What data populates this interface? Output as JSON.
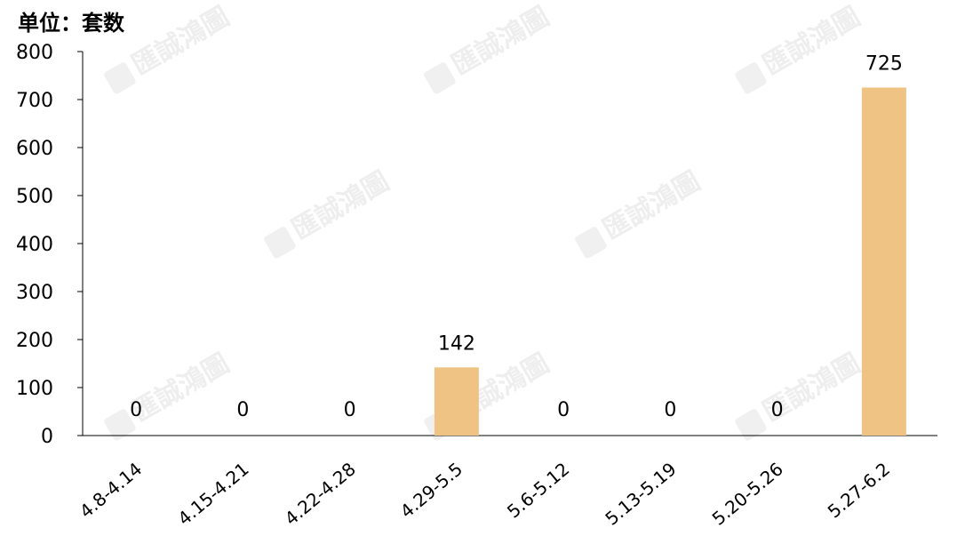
{
  "unit_label": "单位：套数",
  "watermark_text": "匯誠鴻圖",
  "colors": {
    "bar": "#EEC384",
    "axis": "#000000",
    "text": "#000000"
  },
  "chart_data": {
    "type": "bar",
    "categories": [
      "4.8-4.14",
      "4.15-4.21",
      "4.22-4.28",
      "4.29-5.5",
      "5.6-5.12",
      "5.13-5.19",
      "5.20-5.26",
      "5.27-6.2"
    ],
    "values": [
      0,
      0,
      0,
      142,
      0,
      0,
      0,
      725
    ],
    "ylim": [
      0,
      800
    ],
    "yticks": [
      0,
      100,
      200,
      300,
      400,
      500,
      600,
      700,
      800
    ],
    "title": "",
    "xlabel": "",
    "ylabel": "单位：套数",
    "grid": false,
    "legend": "none"
  }
}
